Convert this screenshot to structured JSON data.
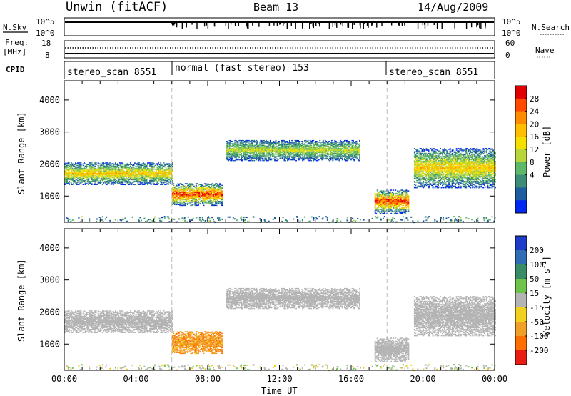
{
  "header": {
    "station": "Unwin (fitACF)",
    "beam": "Beam 13",
    "date": "14/Aug/2009"
  },
  "status_panels": {
    "nsky_label": "N.Sky",
    "nsky_ticks": [
      "10^5",
      "10^0"
    ],
    "nsearch_label": "N.Search",
    "nsearch_ticks": [
      "10^5",
      "10^0"
    ],
    "freq_label": "Freq.",
    "freq_unit": "[MHz]",
    "freq_ticks": [
      "18",
      "8"
    ],
    "nave_label": "Nave",
    "nave_ticks": [
      "60",
      "0"
    ],
    "cpid_label": "CPID"
  },
  "cpid_segments": [
    {
      "label": "stereo_scan 8551",
      "start_hour": 0
    },
    {
      "label": "normal (fast stereo) 153",
      "start_hour": 6
    },
    {
      "label": "stereo_scan 8551",
      "start_hour": 18
    }
  ],
  "colorbars": {
    "power": {
      "title": "Power [dB]",
      "ticks": [
        "28",
        "24",
        "20",
        "16",
        "12",
        "8",
        "4"
      ],
      "colors": [
        "#e00000",
        "#ff4a00",
        "#ff8c00",
        "#ffbe00",
        "#f4e000",
        "#b8d63c",
        "#5fb86a",
        "#3c8c78",
        "#1e5ea0",
        "#0028f0"
      ]
    },
    "velocity": {
      "title": "Velocity [m s",
      "title_sup": "-1",
      "title_end": "]",
      "ticks": [
        "200",
        "100",
        "50",
        "15",
        "-15",
        "-50",
        "-100",
        "-200"
      ],
      "colors": [
        "#1e3cc8",
        "#2f6eb4",
        "#3a8c66",
        "#6fc24a",
        "#b4b4b4",
        "#f0d21e",
        "#f0a028",
        "#ff6e00",
        "#e81e14"
      ]
    }
  },
  "chart_data": [
    {
      "type": "heatmap",
      "title": "Power",
      "ylabel": "Slant Range [km]",
      "xlabel": "",
      "xlim": [
        "00:00",
        "24:00"
      ],
      "ylim": [
        180,
        4600
      ],
      "yticks": [
        "4000",
        "3000",
        "2000",
        "1000"
      ],
      "colorbar": "Power [dB]",
      "regions": [
        {
          "t0": 0.0,
          "t1": 6.0,
          "r0": 1350,
          "r1": 2050,
          "peak_db": 20
        },
        {
          "t0": 6.0,
          "t1": 8.8,
          "r0": 700,
          "r1": 1400,
          "peak_db": 28
        },
        {
          "t0": 9.0,
          "t1": 16.5,
          "r0": 2100,
          "r1": 2750,
          "peak_db": 16
        },
        {
          "t0": 17.3,
          "t1": 19.2,
          "r0": 450,
          "r1": 1200,
          "peak_db": 28
        },
        {
          "t0": 19.5,
          "t1": 24.0,
          "r0": 1250,
          "r1": 2500,
          "peak_db": 20
        }
      ]
    },
    {
      "type": "heatmap",
      "title": "Velocity",
      "ylabel": "Slant Range [km]",
      "xlabel": "Time UT",
      "xlim": [
        "00:00",
        "24:00"
      ],
      "ylim": [
        180,
        4600
      ],
      "yticks": [
        "4000",
        "3000",
        "2000",
        "1000"
      ],
      "xticks": [
        "00:00",
        "04:00",
        "08:00",
        "12:00",
        "16:00",
        "20:00",
        "00:00"
      ],
      "colorbar": "Velocity [m s^-1]",
      "regions": [
        {
          "t0": 0.0,
          "t1": 6.0,
          "r0": 1350,
          "r1": 2050,
          "velocity": 0
        },
        {
          "t0": 6.0,
          "t1": 8.8,
          "r0": 700,
          "r1": 1400,
          "velocity": -60
        },
        {
          "t0": 9.0,
          "t1": 16.5,
          "r0": 2100,
          "r1": 2750,
          "velocity": 0
        },
        {
          "t0": 17.3,
          "t1": 19.2,
          "r0": 450,
          "r1": 1200,
          "velocity": 0
        },
        {
          "t0": 19.5,
          "t1": 24.0,
          "r0": 1250,
          "r1": 2500,
          "velocity": 0
        }
      ]
    }
  ]
}
